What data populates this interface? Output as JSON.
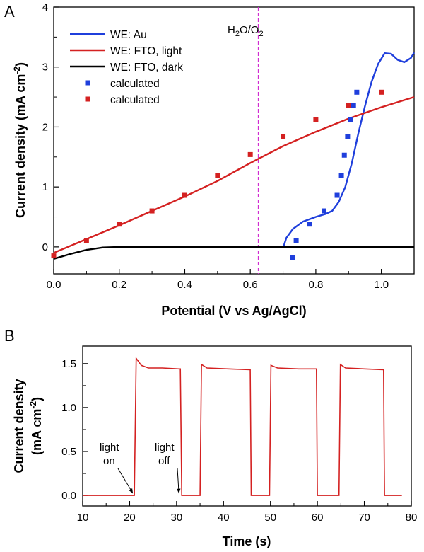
{
  "chart_data": [
    {
      "panel_label": "A",
      "type": "line",
      "xlabel": "Potential (V vs Ag/AgCl)",
      "ylabel": "Current density (mA cm",
      "ylabel_sup": "-2",
      "ylabel_close": ")",
      "xlim": [
        0.0,
        1.1
      ],
      "ylim": [
        -0.45,
        4
      ],
      "xticks": [
        "0.0",
        "0.2",
        "0.4",
        "0.6",
        "0.8",
        "1.0"
      ],
      "xtick_values": [
        0.0,
        0.2,
        0.4,
        0.6,
        0.8,
        1.0
      ],
      "yticks": [
        "0",
        "1",
        "2",
        "3",
        "4"
      ],
      "ytick_values": [
        0,
        1,
        2,
        3,
        4
      ],
      "grid": false,
      "legend_position": "top-left",
      "annotation": {
        "text_parts": [
          "H",
          "2",
          "O/O",
          "2"
        ],
        "x": 0.625
      },
      "series": [
        {
          "name": "WE: Au",
          "kind": "line",
          "color": "#1f3fdc",
          "points": [
            [
              0.7,
              -0.02
            ],
            [
              0.71,
              0.15
            ],
            [
              0.73,
              0.3
            ],
            [
              0.76,
              0.42
            ],
            [
              0.8,
              0.5
            ],
            [
              0.83,
              0.55
            ],
            [
              0.85,
              0.6
            ],
            [
              0.87,
              0.75
            ],
            [
              0.89,
              1.0
            ],
            [
              0.91,
              1.4
            ],
            [
              0.93,
              1.9
            ],
            [
              0.95,
              2.35
            ],
            [
              0.97,
              2.75
            ],
            [
              0.99,
              3.05
            ],
            [
              1.01,
              3.23
            ],
            [
              1.03,
              3.22
            ],
            [
              1.05,
              3.12
            ],
            [
              1.07,
              3.08
            ],
            [
              1.09,
              3.15
            ],
            [
              1.1,
              3.24
            ]
          ]
        },
        {
          "name": "WE: FTO, light",
          "kind": "line",
          "color": "#d42121",
          "points": [
            [
              0.0,
              -0.1
            ],
            [
              0.1,
              0.13
            ],
            [
              0.2,
              0.36
            ],
            [
              0.3,
              0.6
            ],
            [
              0.4,
              0.84
            ],
            [
              0.5,
              1.1
            ],
            [
              0.6,
              1.4
            ],
            [
              0.7,
              1.68
            ],
            [
              0.8,
              1.92
            ],
            [
              0.9,
              2.14
            ],
            [
              1.0,
              2.33
            ],
            [
              1.1,
              2.5
            ]
          ]
        },
        {
          "name": "WE: FTO, dark",
          "kind": "line",
          "color": "#000000",
          "points": [
            [
              0.0,
              -0.2
            ],
            [
              0.05,
              -0.12
            ],
            [
              0.1,
              -0.05
            ],
            [
              0.15,
              -0.01
            ],
            [
              0.2,
              0.0
            ],
            [
              1.1,
              0.0
            ]
          ]
        },
        {
          "name": "calculated",
          "kind": "scatter",
          "color": "#1f3fdc",
          "points": [
            [
              0.73,
              -0.18
            ],
            [
              0.74,
              0.1
            ],
            [
              0.78,
              0.38
            ],
            [
              0.825,
              0.6
            ],
            [
              0.865,
              0.86
            ],
            [
              0.878,
              1.19
            ],
            [
              0.887,
              1.53
            ],
            [
              0.897,
              1.84
            ],
            [
              0.905,
              2.12
            ],
            [
              0.915,
              2.36
            ],
            [
              0.925,
              2.58
            ]
          ]
        },
        {
          "name": "calculated",
          "kind": "scatter",
          "color": "#d42121",
          "points": [
            [
              0.0,
              -0.15
            ],
            [
              0.1,
              0.11
            ],
            [
              0.2,
              0.38
            ],
            [
              0.3,
              0.6
            ],
            [
              0.4,
              0.86
            ],
            [
              0.5,
              1.19
            ],
            [
              0.6,
              1.54
            ],
            [
              0.7,
              1.84
            ],
            [
              0.8,
              2.12
            ],
            [
              0.9,
              2.36
            ],
            [
              1.0,
              2.58
            ]
          ]
        }
      ]
    },
    {
      "panel_label": "B",
      "type": "line",
      "xlabel": "Time (s)",
      "ylabel_line1": "Current density",
      "ylabel_line2": "(mA cm",
      "ylabel_sup": "-2",
      "ylabel_close": ")",
      "xlim": [
        10,
        80
      ],
      "ylim": [
        -0.12,
        1.7
      ],
      "xticks": [
        "10",
        "20",
        "30",
        "40",
        "50",
        "60",
        "70",
        "80"
      ],
      "xtick_values": [
        10,
        20,
        30,
        40,
        50,
        60,
        70,
        80
      ],
      "yticks": [
        "0.0",
        "0.5",
        "1.0",
        "1.5"
      ],
      "ytick_values": [
        0.0,
        0.5,
        1.0,
        1.5
      ],
      "grid": false,
      "annotations": [
        {
          "line1": "light",
          "line2": "on",
          "arrow_to": [
            21,
            0.0
          ]
        },
        {
          "line1": "light",
          "line2": "off",
          "arrow_to": [
            30.8,
            0.0
          ]
        }
      ],
      "series": [
        {
          "color": "#d42121",
          "points": [
            [
              10,
              0.0
            ],
            [
              21,
              0.0
            ],
            [
              21.4,
              1.56
            ],
            [
              22.5,
              1.48
            ],
            [
              24,
              1.45
            ],
            [
              27,
              1.45
            ],
            [
              30.5,
              1.44
            ],
            [
              30.8,
              1.44
            ],
            [
              31.1,
              0.0
            ],
            [
              35,
              0.0
            ],
            [
              35.3,
              1.49
            ],
            [
              36.5,
              1.45
            ],
            [
              41,
              1.44
            ],
            [
              45.7,
              1.43
            ],
            [
              45.9,
              0.0
            ],
            [
              49.8,
              0.0
            ],
            [
              50.1,
              1.48
            ],
            [
              51.5,
              1.45
            ],
            [
              56,
              1.44
            ],
            [
              59.8,
              1.44
            ],
            [
              60.0,
              0.0
            ],
            [
              64.6,
              0.0
            ],
            [
              64.9,
              1.49
            ],
            [
              66,
              1.45
            ],
            [
              70,
              1.44
            ],
            [
              74.1,
              1.43
            ],
            [
              74.3,
              0.0
            ],
            [
              78,
              0.0
            ]
          ]
        }
      ]
    }
  ]
}
